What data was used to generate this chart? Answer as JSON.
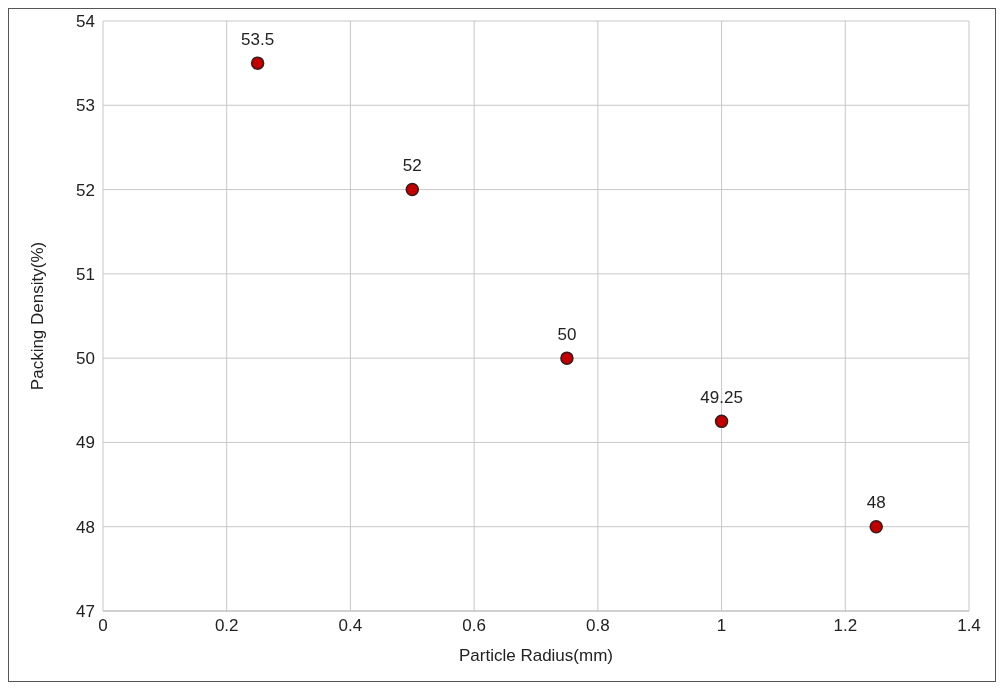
{
  "chart_data": {
    "type": "scatter",
    "xlabel": "Particle Radius(mm)",
    "ylabel": "Packing Density(%)",
    "x": [
      0.25,
      0.5,
      0.75,
      1,
      1.25
    ],
    "values": [
      53.5,
      52,
      50,
      49.25,
      48
    ],
    "color": "#c00000",
    "xlim": [
      0,
      1.4
    ],
    "xticks": [
      0,
      0.2,
      0.4,
      0.6,
      0.8,
      1,
      1.2,
      1.4
    ],
    "ylim": [
      47,
      54
    ],
    "yticks": [
      47,
      48,
      49,
      50,
      51,
      52,
      53,
      54
    ],
    "grid": true,
    "marker": "circle",
    "data_labels": true
  }
}
